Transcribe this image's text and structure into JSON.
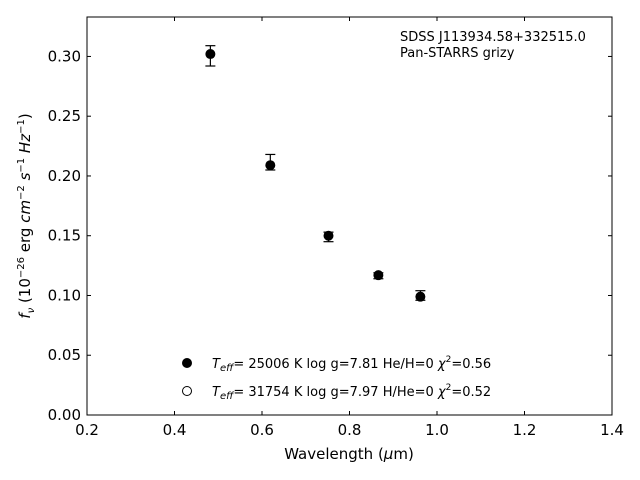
{
  "chart_data": {
    "type": "scatter",
    "xlabel": "Wavelength (μm)",
    "ylabel": "f_ν (10^-26 erg cm^-2 s^-1 Hz^-1)",
    "xlim": [
      0.2,
      1.4
    ],
    "ylim": [
      0.0,
      0.333
    ],
    "xticks": [
      "0.2",
      "0.4",
      "0.6",
      "0.8",
      "1.0",
      "1.2",
      "1.4"
    ],
    "yticks": [
      "0.00",
      "0.05",
      "0.10",
      "0.15",
      "0.20",
      "0.25",
      "0.30"
    ],
    "grid": false,
    "annotation": [
      "SDSS J113934.58+332515.0",
      "Pan-STARRS grizy"
    ],
    "series": [
      {
        "x": [
          0.482,
          0.619,
          0.752,
          0.866,
          0.962
        ],
        "y": [
          0.302,
          0.209,
          0.15,
          0.117,
          0.099
        ],
        "yerr_low": [
          0.01,
          0.004,
          0.005,
          0.003,
          0.003
        ],
        "yerr_high": [
          0.007,
          0.009,
          0.003,
          0.002,
          0.005
        ],
        "marker": "filled-circle"
      }
    ],
    "legend": [
      {
        "marker": "filled-circle",
        "teff": "= 25006 K",
        "text": "log g=7.81  He/H=0",
        "chi2": "=0.56"
      },
      {
        "marker": "open-circle",
        "teff": "= 31754 K",
        "text": "log g=7.97  H/He=0",
        "chi2": "=0.52"
      }
    ],
    "legend_placement": "lower-center"
  }
}
